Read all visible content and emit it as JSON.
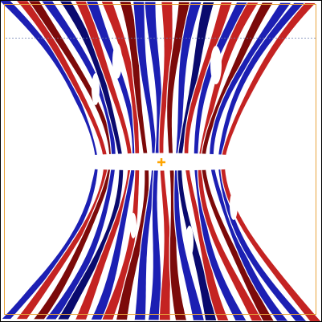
{
  "viewer": {
    "background_color": "#ffffff",
    "frame_color": "#000000",
    "bounding_box_color": "#e8a33c",
    "grid_line_color": "#6d7fb0",
    "center_marker_color": "#ffa500",
    "center_marker_glyph": "+",
    "surface_colors": {
      "red": "#c42322",
      "dark_red": "#7c0a0a",
      "blue": "#1c1fb3",
      "dark_blue": "#0a0a6e",
      "white": "#ffffff"
    }
  }
}
